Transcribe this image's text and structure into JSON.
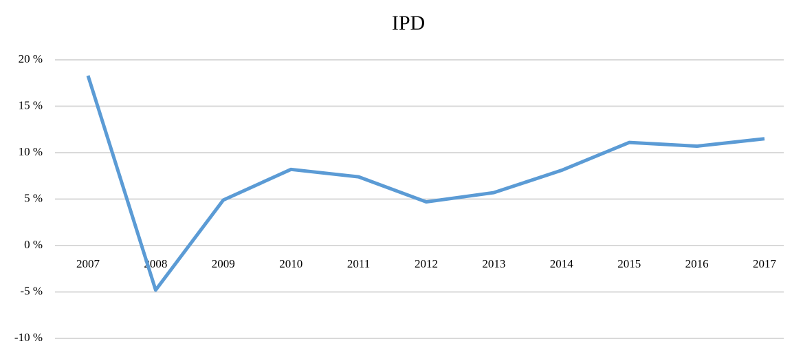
{
  "chart_data": {
    "type": "line",
    "title": "IPD",
    "categories": [
      "2007",
      "2008",
      "2009",
      "2010",
      "2011",
      "2012",
      "2013",
      "2014",
      "2015",
      "2016",
      "2017"
    ],
    "series": [
      {
        "name": "IPD",
        "color": "#5b9bd5",
        "values": [
          18.3,
          -4.8,
          4.9,
          8.2,
          7.4,
          4.7,
          5.7,
          8.1,
          11.1,
          10.7,
          11.5
        ]
      }
    ],
    "ylim": [
      -10,
      20
    ],
    "yticks": [
      {
        "value": -10,
        "label": "-10 %"
      },
      {
        "value": -5,
        "label": "-5 %"
      },
      {
        "value": 0,
        "label": "0 %"
      },
      {
        "value": 5,
        "label": "5 %"
      },
      {
        "value": 10,
        "label": "10 %"
      },
      {
        "value": 15,
        "label": "15 %"
      },
      {
        "value": 20,
        "label": "20 %"
      }
    ],
    "grid": true
  }
}
